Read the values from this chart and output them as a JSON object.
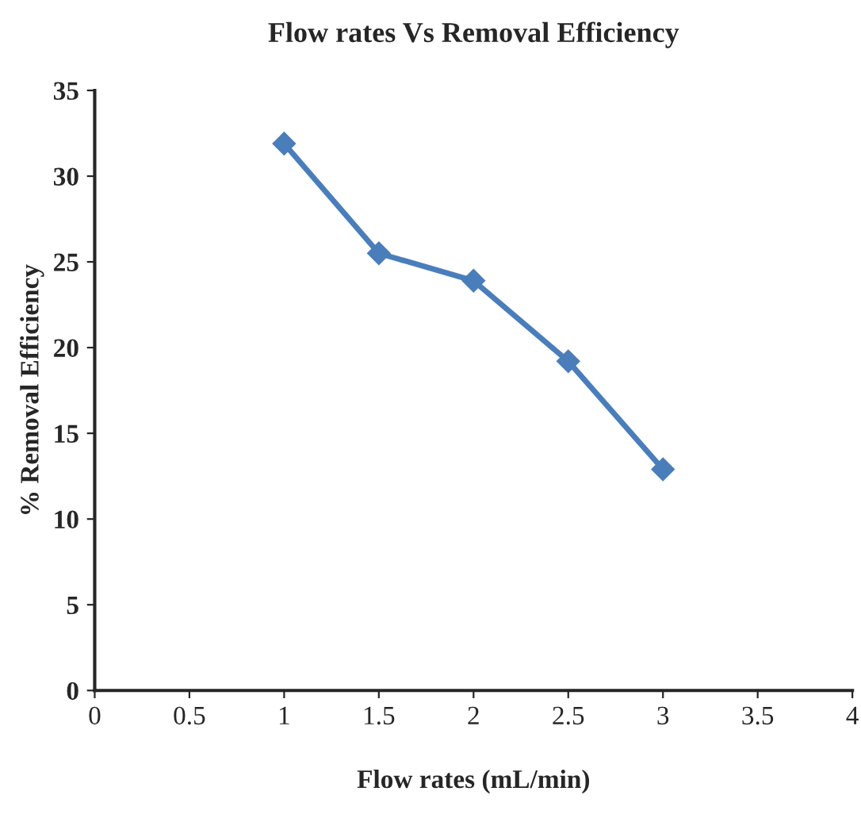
{
  "chart_data": {
    "type": "line",
    "title": "Flow rates Vs Removal Efficiency",
    "xlabel": "Flow rates (mL/min)",
    "ylabel": "% Removal Efficiency",
    "x": [
      1,
      1.5,
      2,
      2.5,
      3
    ],
    "series": [
      {
        "color": "#4a7ebb",
        "values": [
          31.9,
          25.5,
          23.9,
          19.2,
          12.9
        ]
      }
    ],
    "xlim": [
      0,
      4
    ],
    "xticks": [
      0,
      0.5,
      1,
      1.5,
      2,
      2.5,
      3,
      3.5,
      4
    ],
    "ylim": [
      0,
      35
    ],
    "yticks": [
      0,
      5,
      10,
      15,
      20,
      25,
      30,
      35
    ],
    "grid": false,
    "marker": "diamond",
    "line_style": "solid",
    "legend": false
  }
}
